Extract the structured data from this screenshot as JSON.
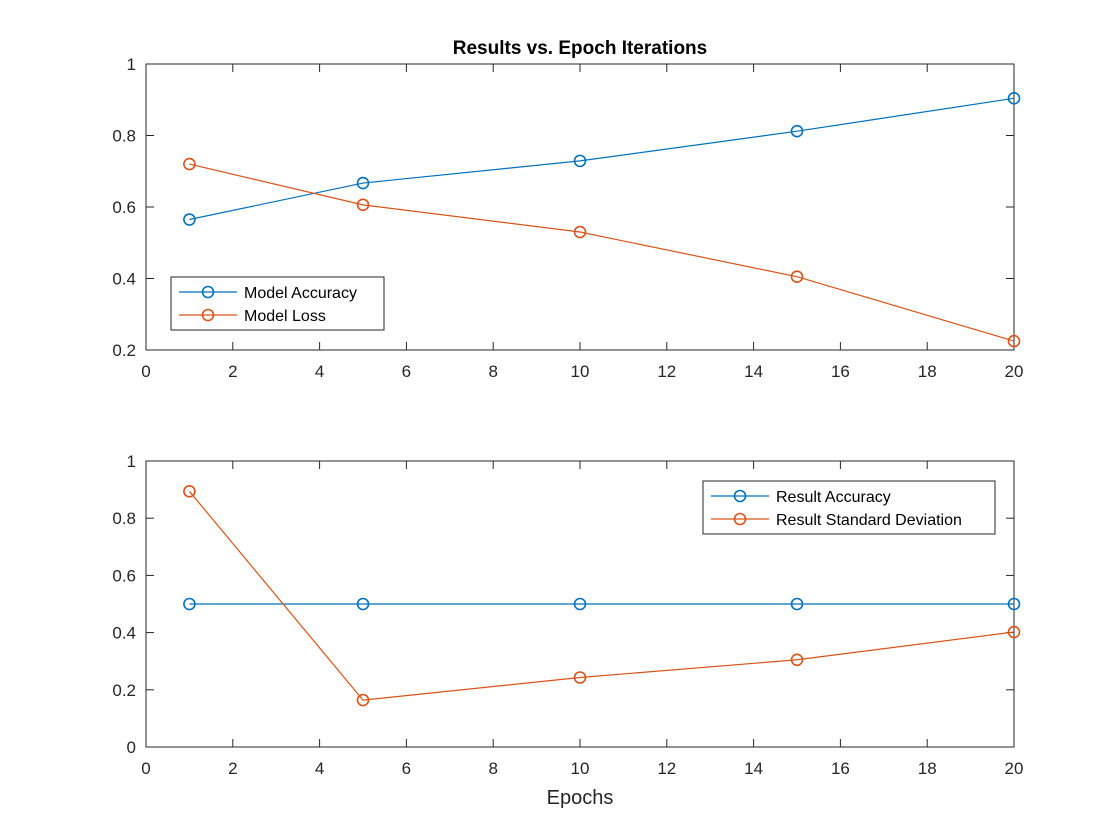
{
  "chart_data": [
    {
      "type": "line",
      "title": "Results vs. Epoch Iterations",
      "xlabel": "",
      "ylabel": "",
      "x": [
        1,
        5,
        10,
        15,
        20
      ],
      "xlim": [
        0,
        20
      ],
      "ylim": [
        0.2,
        1
      ],
      "xticks": [
        "0",
        "2",
        "4",
        "6",
        "8",
        "10",
        "12",
        "14",
        "16",
        "18",
        "20"
      ],
      "yticks": [
        "0.2",
        "0.4",
        "0.6",
        "0.8",
        "1"
      ],
      "grid": false,
      "legend_position": "bottom-left",
      "series": [
        {
          "name": "Model Accuracy",
          "color": "#0072BD",
          "marker": "circle",
          "values": [
            0.565,
            0.667,
            0.729,
            0.812,
            0.904
          ]
        },
        {
          "name": "Model Loss",
          "color": "#D95319",
          "marker": "circle",
          "values": [
            0.72,
            0.606,
            0.53,
            0.405,
            0.225
          ]
        }
      ]
    },
    {
      "type": "line",
      "title": "",
      "xlabel": "Epochs",
      "ylabel": "",
      "x": [
        1,
        5,
        10,
        15,
        20
      ],
      "xlim": [
        0,
        20
      ],
      "ylim": [
        0,
        1
      ],
      "xticks": [
        "0",
        "2",
        "4",
        "6",
        "8",
        "10",
        "12",
        "14",
        "16",
        "18",
        "20"
      ],
      "yticks": [
        "0",
        "0.2",
        "0.4",
        "0.6",
        "0.8",
        "1"
      ],
      "grid": false,
      "legend_position": "top-right",
      "series": [
        {
          "name": "Result Accuracy",
          "color": "#0072BD",
          "marker": "circle",
          "values": [
            0.5,
            0.5,
            0.5,
            0.5,
            0.5
          ]
        },
        {
          "name": "Result Standard Deviation",
          "color": "#D95319",
          "marker": "circle",
          "values": [
            0.894,
            0.164,
            0.243,
            0.305,
            0.402
          ]
        }
      ]
    }
  ]
}
